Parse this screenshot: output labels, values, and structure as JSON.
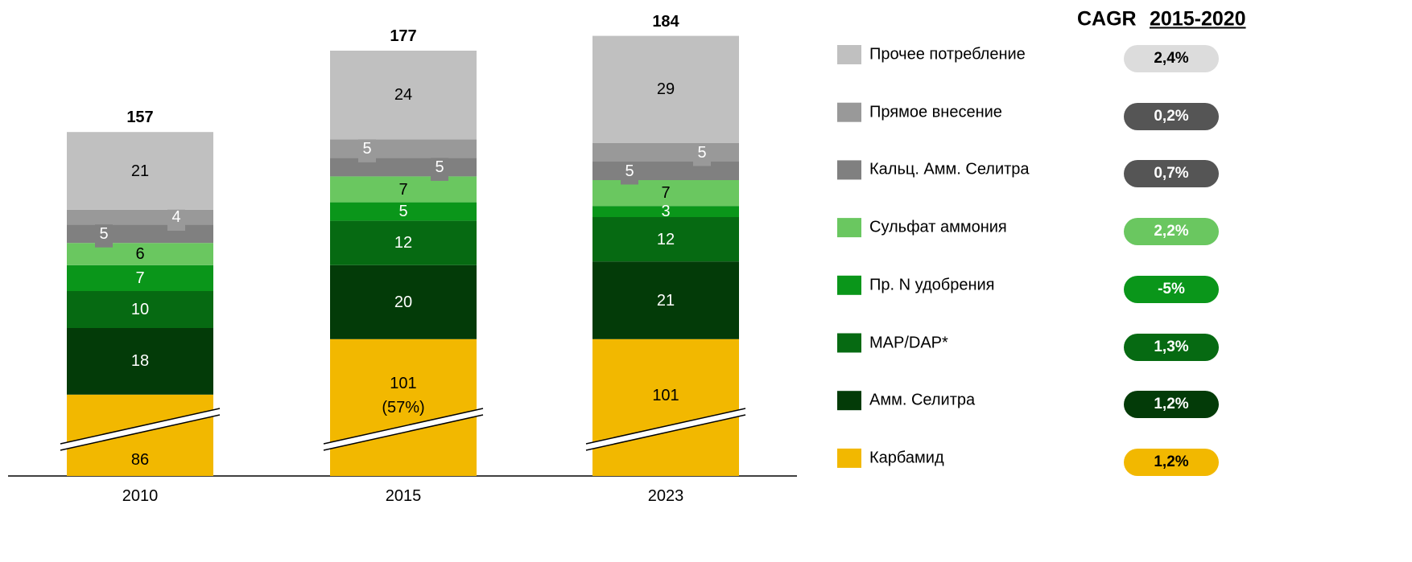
{
  "chart_data": {
    "type": "bar",
    "stacked": true,
    "categories": [
      "2010",
      "2015",
      "2023"
    ],
    "totals": [
      157,
      177,
      184
    ],
    "cagr_title": "CAGR",
    "cagr_period": "2015-2020",
    "series": [
      {
        "name": "Карбамид",
        "color": "#f2b800",
        "values": [
          86,
          101,
          101
        ],
        "value_labels": [
          "86",
          "101\n(57%)",
          "101"
        ],
        "cagr": "1,2%"
      },
      {
        "name": "Амм. Селитра",
        "color": "#033b08",
        "values": [
          18,
          20,
          21
        ],
        "cagr": "1,2%"
      },
      {
        "name": "MAP/DAP*",
        "color": "#066a12",
        "values": [
          10,
          12,
          12
        ],
        "cagr": "1,3%"
      },
      {
        "name": "Пр. N удобрения",
        "color": "#0a961a",
        "values": [
          7,
          5,
          3
        ],
        "cagr": "-5%"
      },
      {
        "name": "Сульфат аммония",
        "color": "#6ac760",
        "values": [
          6,
          7,
          7
        ],
        "cagr": "2,2%"
      },
      {
        "name": "Кальц. Амм. Селитра",
        "color": "#808080",
        "values": [
          5,
          5,
          5
        ],
        "cagr": "0,7%"
      },
      {
        "name": "Прямое внесение",
        "color": "#999999",
        "values": [
          4,
          5,
          5
        ],
        "cagr": "0,2%"
      },
      {
        "name": "Прочее потребление",
        "color": "#c0c0c0",
        "values": [
          21,
          24,
          29
        ],
        "cagr": "2,4%"
      }
    ]
  }
}
